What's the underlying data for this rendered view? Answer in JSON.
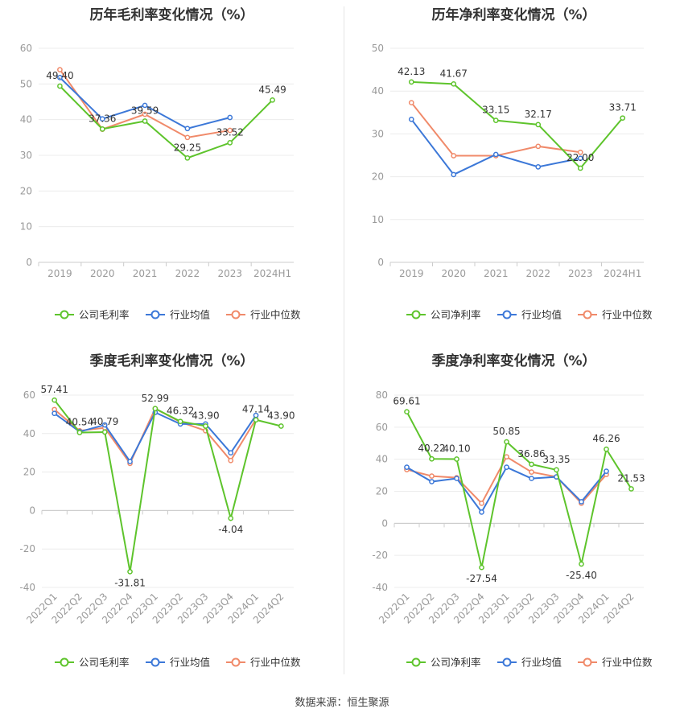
{
  "source_label": "数据来源：恒生聚源",
  "colors": {
    "company": "#5ec42c",
    "avg": "#3c78d8",
    "median": "#f08a6a"
  },
  "legend_common": {
    "avg": "行业均值",
    "median": "行业中位数"
  },
  "chart_data": [
    {
      "type": "line",
      "title": "历年毛利率变化情况（%）",
      "categories": [
        "2019",
        "2020",
        "2021",
        "2022",
        "2023",
        "2024H1"
      ],
      "ylim": [
        0,
        60
      ],
      "yticks": [
        0,
        10,
        20,
        30,
        40,
        50,
        60
      ],
      "series": [
        {
          "name": "公司毛利率",
          "key": "company",
          "values": [
            49.4,
            37.36,
            39.59,
            29.25,
            33.52,
            45.49
          ],
          "labels": [
            "49.40",
            "37.36",
            "39.59",
            "29.25",
            "33.52",
            "45.49"
          ]
        },
        {
          "name": "行业均值",
          "key": "avg",
          "values": [
            51.8,
            40.2,
            44.0,
            37.5,
            40.6,
            null
          ]
        },
        {
          "name": "行业中位数",
          "key": "median",
          "values": [
            54.0,
            37.3,
            41.5,
            35.0,
            37.0,
            null
          ]
        }
      ],
      "legend": [
        "公司毛利率",
        "行业均值",
        "行业中位数"
      ]
    },
    {
      "type": "line",
      "title": "历年净利率变化情况（%）",
      "categories": [
        "2019",
        "2020",
        "2021",
        "2022",
        "2023",
        "2024H1"
      ],
      "ylim": [
        0,
        50
      ],
      "yticks": [
        0,
        10,
        20,
        30,
        40,
        50
      ],
      "series": [
        {
          "name": "公司净利率",
          "key": "company",
          "values": [
            42.13,
            41.67,
            33.15,
            32.17,
            22.0,
            33.71
          ],
          "labels": [
            "42.13",
            "41.67",
            "33.15",
            "32.17",
            "22.00",
            "33.71"
          ]
        },
        {
          "name": "行业均值",
          "key": "avg",
          "values": [
            33.4,
            20.5,
            25.2,
            22.3,
            24.3,
            null
          ]
        },
        {
          "name": "行业中位数",
          "key": "median",
          "values": [
            37.3,
            24.9,
            24.9,
            27.1,
            25.7,
            null
          ]
        }
      ],
      "legend": [
        "公司净利率",
        "行业均值",
        "行业中位数"
      ]
    },
    {
      "type": "line",
      "title": "季度毛利率变化情况（%）",
      "categories": [
        "2022Q1",
        "2022Q2",
        "2022Q3",
        "2022Q4",
        "2023Q1",
        "2023Q2",
        "2023Q3",
        "2023Q4",
        "2024Q1",
        "2024Q2"
      ],
      "ylim": [
        -40,
        60
      ],
      "yticks": [
        -40,
        -20,
        0,
        20,
        40,
        60
      ],
      "series": [
        {
          "name": "公司毛利率",
          "key": "company",
          "values": [
            57.41,
            40.54,
            40.79,
            -31.81,
            52.99,
            46.32,
            43.9,
            -4.04,
            47.14,
            43.9
          ],
          "labels": [
            "57.41",
            "40.54",
            "40.79",
            "-31.81",
            "52.99",
            "46.32",
            "43.90",
            "-4.04",
            "47.14",
            "43.90"
          ]
        },
        {
          "name": "行业均值",
          "key": "avg",
          "values": [
            50.5,
            41.0,
            44.5,
            25.5,
            51.0,
            45.0,
            45.0,
            30.0,
            49.5,
            null
          ]
        },
        {
          "name": "行业中位数",
          "key": "median",
          "values": [
            52.5,
            41.5,
            43.0,
            24.5,
            53.0,
            46.0,
            41.5,
            26.0,
            47.5,
            null
          ]
        }
      ],
      "legend": [
        "公司毛利率",
        "行业均值",
        "行业中位数"
      ]
    },
    {
      "type": "line",
      "title": "季度净利率变化情况（%）",
      "categories": [
        "2022Q1",
        "2022Q2",
        "2022Q3",
        "2022Q4",
        "2023Q1",
        "2023Q2",
        "2023Q3",
        "2023Q4",
        "2024Q1",
        "2024Q2"
      ],
      "ylim": [
        -40,
        80
      ],
      "yticks": [
        -40,
        -20,
        0,
        20,
        40,
        60,
        80
      ],
      "series": [
        {
          "name": "公司净利率",
          "key": "company",
          "values": [
            69.61,
            40.22,
            40.1,
            -27.54,
            50.85,
            36.86,
            33.35,
            -25.4,
            46.26,
            21.53
          ],
          "labels": [
            "69.61",
            "40.22",
            "40.10",
            "-27.54",
            "50.85",
            "36.86",
            "33.35",
            "-25.40",
            "46.26",
            "21.53"
          ]
        },
        {
          "name": "行业均值",
          "key": "avg",
          "values": [
            35.0,
            26.0,
            28.0,
            7.0,
            35.0,
            28.0,
            29.0,
            13.5,
            32.5,
            null
          ]
        },
        {
          "name": "行业中位数",
          "key": "median",
          "values": [
            33.5,
            29.5,
            28.5,
            12.5,
            41.5,
            32.0,
            29.0,
            12.5,
            30.5,
            null
          ]
        }
      ],
      "legend": [
        "公司净利率",
        "行业均值",
        "行业中位数"
      ]
    }
  ]
}
